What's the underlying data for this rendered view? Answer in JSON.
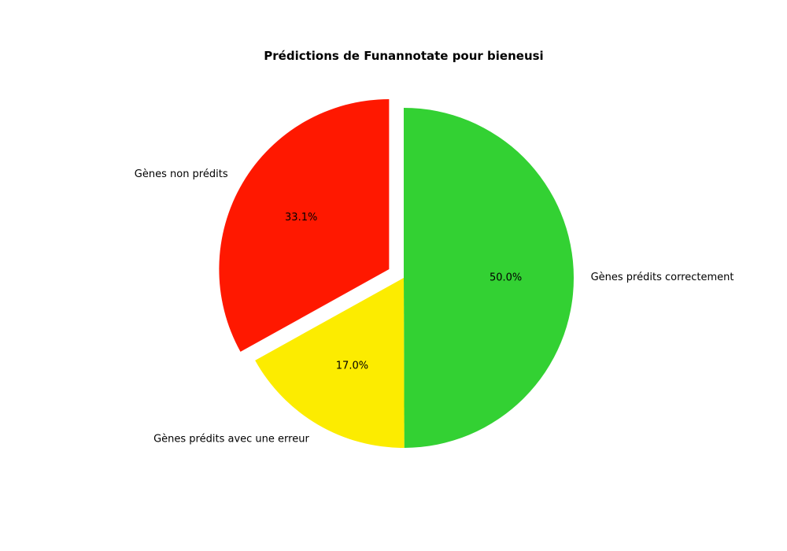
{
  "chart_data": {
    "type": "pie",
    "title": "Prédictions de Funannotate pour bieneusi",
    "start_angle_deg": 90,
    "direction": "clockwise",
    "slices": [
      {
        "label": "Gènes prédits correctement",
        "value": 50.0,
        "pct_text": "50.0%",
        "color": "#33d133",
        "exploded": false
      },
      {
        "label": "Gènes prédits avec une erreur",
        "value": 17.0,
        "pct_text": "17.0%",
        "color": "#fcec00",
        "exploded": false
      },
      {
        "label": "Gènes non prédits",
        "value": 33.1,
        "pct_text": "33.1%",
        "color": "#ff1800",
        "exploded": true
      }
    ]
  }
}
